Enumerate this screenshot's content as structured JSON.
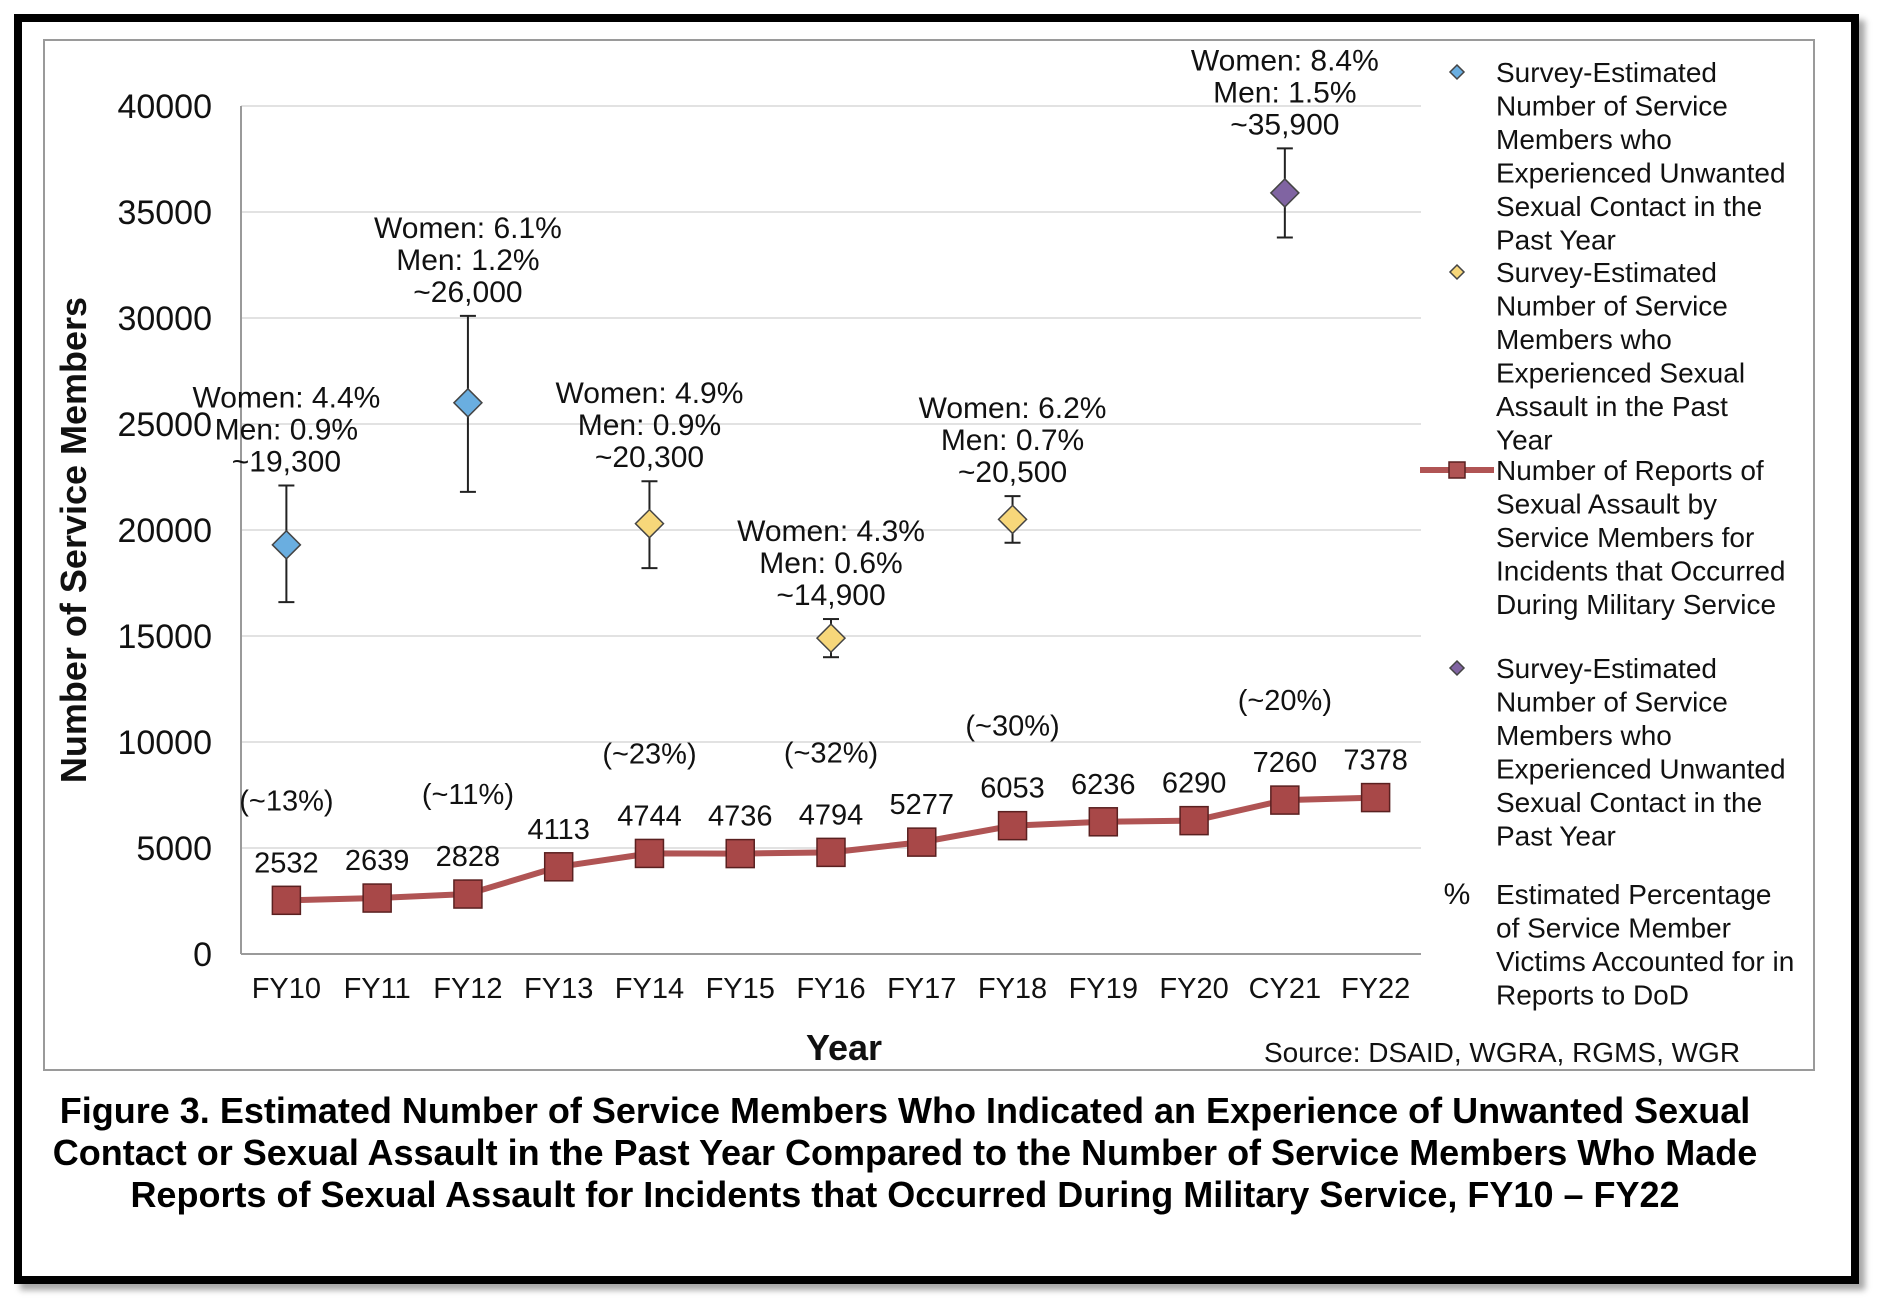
{
  "chart_data": {
    "type": "line",
    "categories": [
      "FY10",
      "FY11",
      "FY12",
      "FY13",
      "FY14",
      "FY15",
      "FY16",
      "FY17",
      "FY18",
      "FY19",
      "FY20",
      "CY21",
      "FY22"
    ],
    "xlabel": "Year",
    "ylabel": "Number of Service Members",
    "ylim": [
      0,
      40000
    ],
    "yticks": [
      0,
      5000,
      10000,
      15000,
      20000,
      25000,
      30000,
      35000,
      40000
    ],
    "grid": true,
    "legend_position": "right",
    "source": "Source: DSAID, WGRA, RGMS, WGR",
    "series": [
      {
        "name": "Number of Reports of Sexual Assault by Service Members for Incidents that Occurred During Military Service",
        "kind": "line-markers",
        "color": "#b05454",
        "marker_fill": "#a84848",
        "values": [
          2532,
          2639,
          2828,
          4113,
          4744,
          4736,
          4794,
          5277,
          6053,
          6236,
          6290,
          7260,
          7378
        ],
        "labels": [
          "2532",
          "2639",
          "2828",
          "4113",
          "4744",
          "4736",
          "4794",
          "5277",
          "6053",
          "6236",
          "6290",
          "7260",
          "7378"
        ]
      },
      {
        "name": "Survey-Estimated Number of Service Members who Experienced Unwanted Sexual Contact in the Past Year",
        "kind": "diamond-errorbar",
        "color": "#6aaee0",
        "points": [
          {
            "x": "FY10",
            "y": 19300,
            "low": 16600,
            "high": 22100,
            "text": [
              "Women: 4.4%",
              "Men: 0.9%",
              "~19,300"
            ]
          },
          {
            "x": "FY12",
            "y": 26000,
            "low": 21800,
            "high": 30100,
            "text": [
              "Women: 6.1%",
              "Men: 1.2%",
              "~26,000"
            ]
          }
        ]
      },
      {
        "name": "Survey-Estimated Number of Service Members who Experienced Sexual Assault in the Past Year",
        "kind": "diamond-errorbar",
        "color": "#f7d77a",
        "points": [
          {
            "x": "FY14",
            "y": 20300,
            "low": 18200,
            "high": 22300,
            "text": [
              "Women: 4.9%",
              "Men: 0.9%",
              "~20,300"
            ]
          },
          {
            "x": "FY16",
            "y": 14900,
            "low": 14000,
            "high": 15800,
            "text": [
              "Women: 4.3%",
              "Men: 0.6%",
              "~14,900"
            ]
          },
          {
            "x": "FY18",
            "y": 20500,
            "low": 19400,
            "high": 21600,
            "text": [
              "Women: 6.2%",
              "Men: 0.7%",
              "~20,500"
            ]
          }
        ]
      },
      {
        "name": "Survey-Estimated Number of Service Members who Experienced Unwanted Sexual Contact in the Past Year",
        "kind": "diamond-errorbar",
        "color": "#8064a2",
        "points": [
          {
            "x": "CY21",
            "y": 35900,
            "low": 33800,
            "high": 38000,
            "text": [
              "Women: 8.4%",
              "Men: 1.5%",
              "~35,900"
            ]
          }
        ]
      }
    ],
    "percentages": [
      {
        "x": "FY10",
        "text": "(~13%)"
      },
      {
        "x": "FY12",
        "text": "(~11%)"
      },
      {
        "x": "FY14",
        "text": "(~23%)"
      },
      {
        "x": "FY16",
        "text": "(~32%)"
      },
      {
        "x": "FY18",
        "text": "(~30%)"
      },
      {
        "x": "CY21",
        "text": "(~20%)"
      }
    ],
    "legend": [
      {
        "marker": "diamond",
        "color": "#6aaee0",
        "lines": [
          "Survey-Estimated",
          "Number of Service",
          "Members who",
          "Experienced Unwanted",
          "Sexual Contact in the",
          "Past Year"
        ]
      },
      {
        "marker": "diamond",
        "color": "#f7d77a",
        "lines": [
          "Survey-Estimated",
          "Number of Service",
          "Members who",
          "Experienced Sexual",
          "Assault in the Past",
          "Year"
        ]
      },
      {
        "marker": "line-square",
        "color": "#b05454",
        "lines": [
          "Number of Reports of",
          "Sexual Assault by",
          "Service Members for",
          "Incidents that Occurred",
          "During Military Service"
        ]
      },
      {
        "marker": "diamond",
        "color": "#8064a2",
        "lines": [
          "Survey-Estimated",
          "Number of Service",
          "Members who",
          "Experienced Unwanted",
          "Sexual Contact in the",
          "Past Year"
        ]
      },
      {
        "marker": "percent",
        "symbol": "%",
        "color": "#111111",
        "lines": [
          "Estimated Percentage",
          "of Service Member",
          "Victims Accounted for in",
          "Reports to DoD"
        ]
      }
    ]
  },
  "caption": "Figure 3. Estimated Number of Service Members Who Indicated an Experience of Unwanted Sexual Contact or Sexual Assault in the Past Year Compared to the Number of Service Members Who Made Reports of Sexual Assault for Incidents that Occurred During Military Service, FY10 – FY22"
}
